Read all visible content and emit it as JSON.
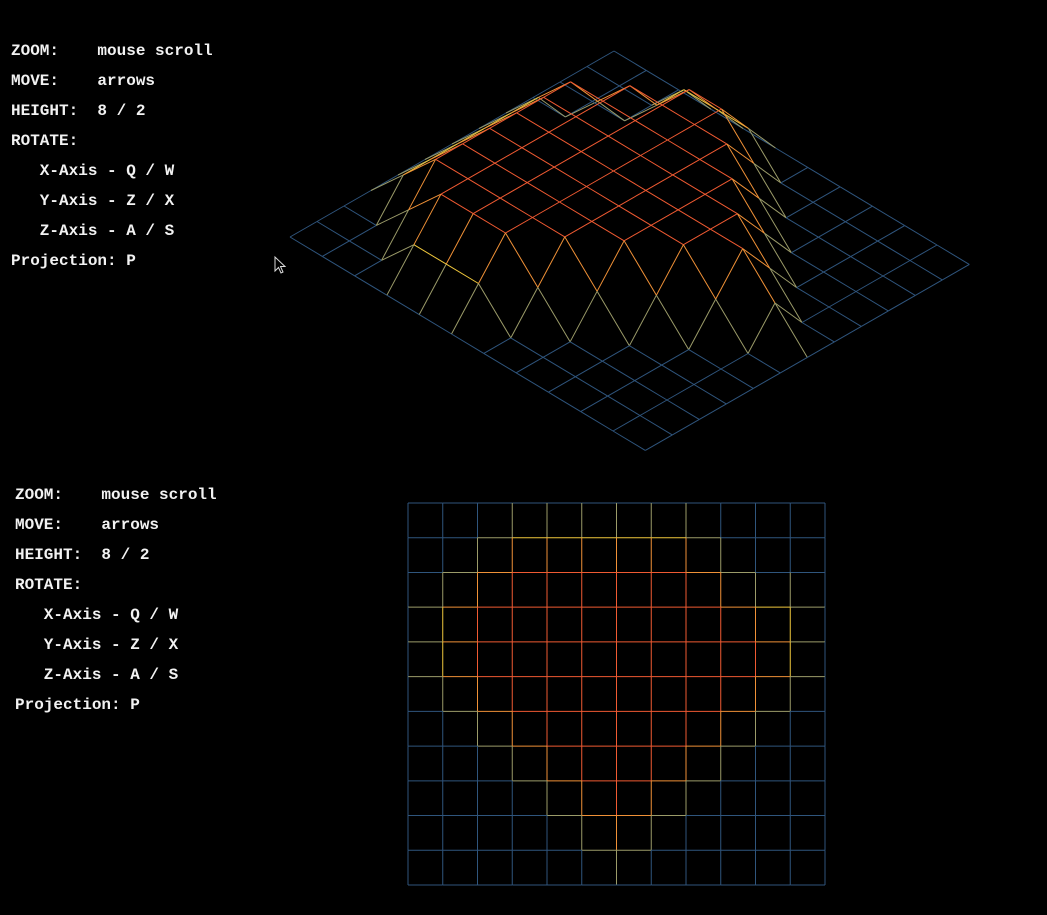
{
  "panels": [
    {
      "lines": [
        "ZOOM:    mouse scroll",
        "MOVE:    arrows",
        "HEIGHT:  8 / 2",
        "ROTATE:",
        "   X-Axis - Q / W",
        "   Y-Axis - Z / X",
        "   Z-Axis - A / S",
        "Projection: P"
      ]
    },
    {
      "lines": [
        "ZOOM:    mouse scroll",
        "MOVE:    arrows",
        "HEIGHT:  8 / 2",
        "ROTATE:",
        "   X-Axis - Q / W",
        "   Y-Axis - Z / X",
        "   Z-Axis - A / S",
        "Projection: P"
      ]
    }
  ],
  "map": [
    [
      0,
      0,
      0,
      0,
      0,
      0,
      0,
      0,
      0,
      0,
      0,
      0,
      0
    ],
    [
      0,
      0,
      0,
      5,
      5,
      5,
      5,
      5,
      5,
      0,
      0,
      0,
      0
    ],
    [
      0,
      0,
      5,
      10,
      10,
      10,
      10,
      10,
      10,
      5,
      0,
      0,
      0
    ],
    [
      0,
      5,
      10,
      10,
      10,
      10,
      10,
      10,
      10,
      10,
      5,
      5,
      0
    ],
    [
      0,
      5,
      10,
      10,
      10,
      10,
      10,
      10,
      10,
      10,
      10,
      5,
      0
    ],
    [
      0,
      5,
      10,
      10,
      10,
      10,
      10,
      10,
      10,
      10,
      10,
      5,
      0
    ],
    [
      0,
      0,
      5,
      10,
      10,
      10,
      10,
      10,
      10,
      10,
      5,
      0,
      0
    ],
    [
      0,
      0,
      0,
      5,
      10,
      10,
      10,
      10,
      10,
      5,
      0,
      0,
      0
    ],
    [
      0,
      0,
      0,
      0,
      5,
      10,
      10,
      10,
      5,
      0,
      0,
      0,
      0
    ],
    [
      0,
      0,
      0,
      0,
      0,
      5,
      10,
      5,
      0,
      0,
      0,
      0,
      0
    ],
    [
      0,
      0,
      0,
      0,
      0,
      0,
      5,
      0,
      0,
      0,
      0,
      0,
      0
    ],
    [
      0,
      0,
      0,
      0,
      0,
      0,
      0,
      0,
      0,
      0,
      0,
      0,
      0
    ]
  ]
}
